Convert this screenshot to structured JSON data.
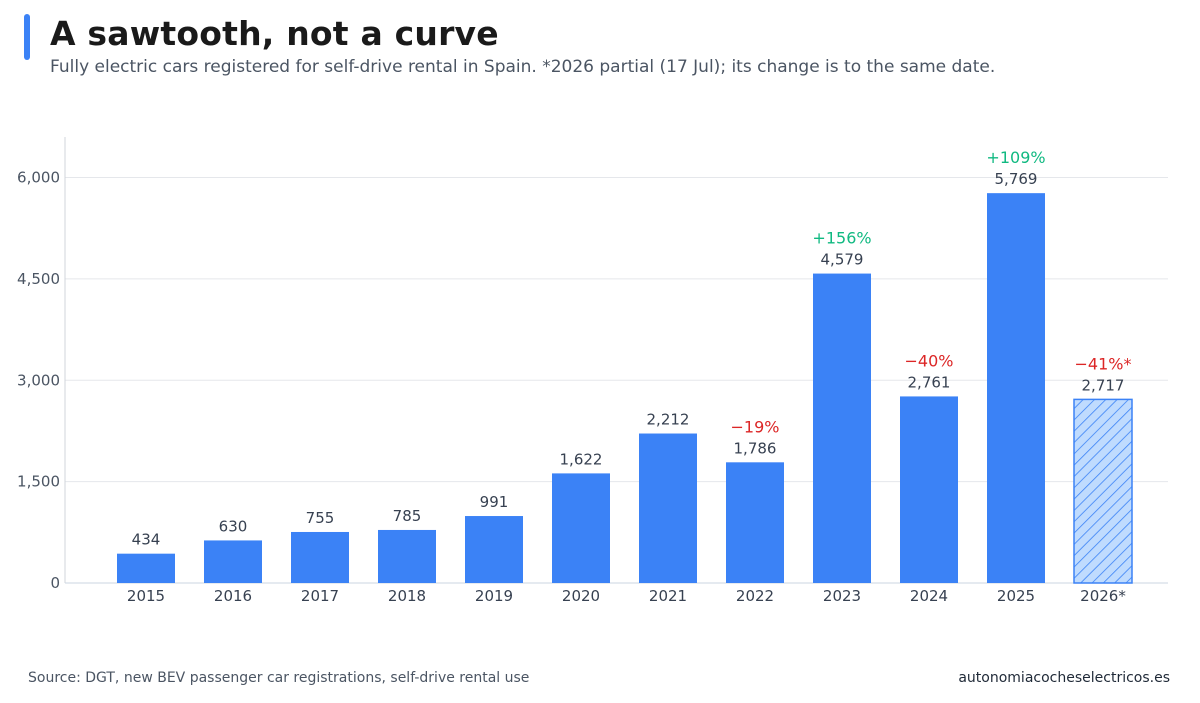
{
  "header": {
    "title": "A sawtooth, not a curve",
    "subtitle": "Fully electric cars registered for self-drive rental in Spain. *2026 partial (17 Jul); its change is to the same date."
  },
  "footer": {
    "source": "Source: DGT, new BEV passenger car registrations, self-drive rental use",
    "site": "autonomiacocheselectricos.es"
  },
  "colors": {
    "accent": "#3b82f6",
    "bar": "#3b82f6",
    "partial_fill": "#bfdbfe",
    "partial_stroke": "#3b82f6",
    "up": "#10b981",
    "down": "#dc2626"
  },
  "chart_data": {
    "type": "bar",
    "categories": [
      "2015",
      "2016",
      "2017",
      "2018",
      "2019",
      "2020",
      "2021",
      "2022",
      "2023",
      "2024",
      "2025",
      "2026*"
    ],
    "values": [
      434,
      630,
      755,
      785,
      991,
      1622,
      2212,
      1786,
      4579,
      2761,
      5769,
      2717
    ],
    "value_labels": [
      "434",
      "630",
      "755",
      "785",
      "991",
      "1,622",
      "2,212",
      "1,786",
      "4,579",
      "2,761",
      "5,769",
      "2,717"
    ],
    "change_labels": [
      "",
      "",
      "",
      "",
      "",
      "",
      "",
      "−19%",
      "+156%",
      "−40%",
      "+109%",
      "−41%*"
    ],
    "change_direction": [
      "",
      "",
      "",
      "",
      "",
      "",
      "",
      "down",
      "up",
      "down",
      "up",
      "down"
    ],
    "partial": [
      false,
      false,
      false,
      false,
      false,
      false,
      false,
      false,
      false,
      false,
      false,
      true
    ],
    "ylim": [
      0,
      6600
    ],
    "yticks": [
      0,
      1500,
      3000,
      4500,
      6000
    ],
    "ytick_labels": [
      "0",
      "1,500",
      "3,000",
      "4,500",
      "6,000"
    ],
    "grid": true,
    "legend": "none"
  }
}
